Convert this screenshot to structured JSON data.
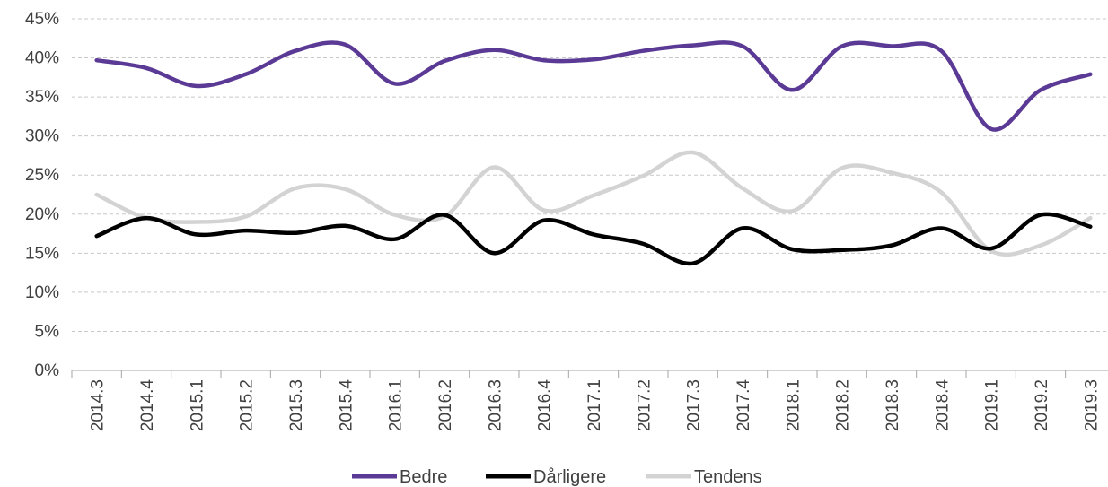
{
  "chart_data": {
    "type": "line",
    "categories": [
      "2014.3",
      "2014.4",
      "2015.1",
      "2015.2",
      "2015.3",
      "2015.4",
      "2016.1",
      "2016.2",
      "2016.3",
      "2016.4",
      "2017.1",
      "2017.2",
      "2017.3",
      "2017.4",
      "2018.1",
      "2018.2",
      "2018.3",
      "2018.4",
      "2019.1",
      "2019.2",
      "2019.3"
    ],
    "series": [
      {
        "name": "Bedre",
        "color": "#5b3a96",
        "values": [
          39.7,
          38.7,
          36.4,
          37.9,
          40.9,
          41.7,
          36.7,
          39.6,
          41.0,
          39.7,
          39.8,
          40.9,
          41.6,
          41.5,
          35.9,
          41.5,
          41.5,
          40.9,
          30.9,
          35.9,
          37.9
        ]
      },
      {
        "name": "Dårligere",
        "color": "#000000",
        "values": [
          17.2,
          19.5,
          17.4,
          17.9,
          17.6,
          18.5,
          16.8,
          19.9,
          15.0,
          19.2,
          17.4,
          16.2,
          13.7,
          18.2,
          15.5,
          15.4,
          16.0,
          18.2,
          15.6,
          19.9,
          18.4
        ]
      },
      {
        "name": "Tendens",
        "color": "#d3d3d3",
        "values": [
          22.5,
          19.5,
          19.0,
          19.7,
          23.3,
          23.2,
          19.9,
          19.7,
          26.0,
          20.5,
          22.4,
          24.9,
          27.9,
          23.3,
          20.4,
          25.9,
          25.3,
          22.8,
          15.3,
          16.0,
          19.5
        ]
      }
    ],
    "ylim": [
      0,
      45
    ],
    "y_ticks": [
      0,
      5,
      10,
      15,
      20,
      25,
      30,
      35,
      40,
      45
    ],
    "y_tick_labels": [
      "0%",
      "5%",
      "10%",
      "15%",
      "20%",
      "25%",
      "30%",
      "35%",
      "40%",
      "45%"
    ],
    "grid": true,
    "legend_position": "bottom",
    "title": "",
    "xlabel": "",
    "ylabel": ""
  }
}
